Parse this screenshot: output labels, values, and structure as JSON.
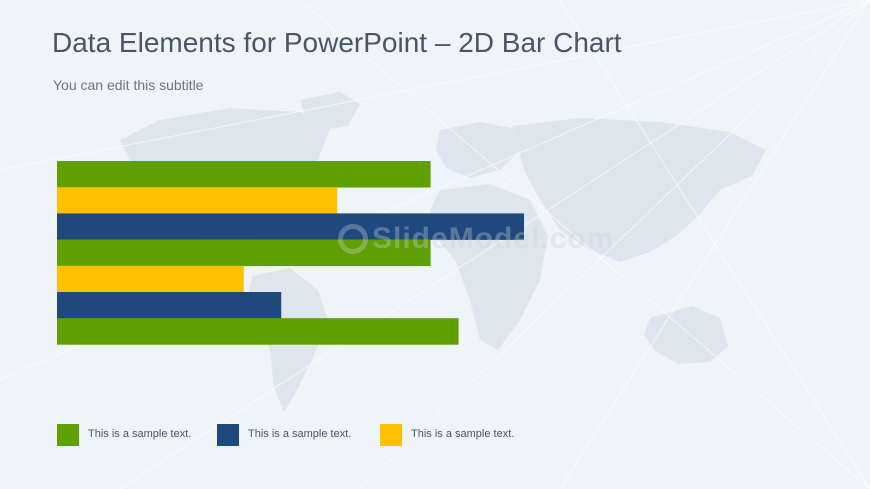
{
  "header": {
    "title": "Data Elements for PowerPoint – 2D Bar Chart",
    "subtitle": "You can edit this subtitle"
  },
  "watermark": {
    "text": "SlideModel.com"
  },
  "colors": {
    "background": "#eef4f8",
    "map": "#dde6ee",
    "green": "#5ea000",
    "yellow": "#ffc000",
    "blue": "#1f497d"
  },
  "chart_data": {
    "type": "bar",
    "orientation": "horizontal",
    "bars": [
      {
        "color": "green",
        "value": 80
      },
      {
        "color": "yellow",
        "value": 60
      },
      {
        "color": "blue",
        "value": 100
      },
      {
        "color": "green",
        "value": 80
      },
      {
        "color": "yellow",
        "value": 40
      },
      {
        "color": "blue",
        "value": 48
      },
      {
        "color": "green",
        "value": 86
      }
    ],
    "xlim": [
      0,
      100
    ],
    "grid": false,
    "legend_position": "bottom-left",
    "legend": [
      {
        "label": "This is a sample text.",
        "color": "green"
      },
      {
        "label": "This is a sample text.",
        "color": "blue"
      },
      {
        "label": "This is a sample text.",
        "color": "yellow"
      }
    ]
  }
}
